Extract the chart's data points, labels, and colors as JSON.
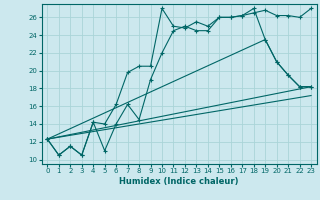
{
  "xlabel": "Humidex (Indice chaleur)",
  "bg_color": "#cce8ee",
  "line_color": "#006666",
  "grid_color": "#aad4d8",
  "xlim": [
    -0.5,
    23.5
  ],
  "ylim": [
    9.5,
    27.5
  ],
  "xticks": [
    0,
    1,
    2,
    3,
    4,
    5,
    6,
    7,
    8,
    9,
    10,
    11,
    12,
    13,
    14,
    15,
    16,
    17,
    18,
    19,
    20,
    21,
    22,
    23
  ],
  "yticks": [
    10,
    12,
    14,
    16,
    18,
    20,
    22,
    24,
    26
  ],
  "series1_x": [
    0,
    1,
    2,
    3,
    4,
    5,
    6,
    7,
    8,
    9,
    10,
    11,
    12,
    13,
    14,
    15,
    16,
    17,
    18,
    19,
    20,
    21,
    22,
    23
  ],
  "series1_y": [
    12.3,
    10.5,
    11.5,
    10.5,
    14.2,
    11.0,
    14.0,
    16.2,
    14.5,
    19.0,
    22.0,
    24.5,
    25.0,
    24.5,
    24.5,
    26.0,
    26.0,
    26.2,
    27.0,
    23.5,
    21.0,
    19.5,
    18.2,
    18.2
  ],
  "series2_x": [
    0,
    1,
    2,
    3,
    4,
    5,
    6,
    7,
    8,
    9,
    10,
    11,
    12,
    13,
    14,
    15,
    16,
    17,
    18,
    19,
    20,
    21,
    22,
    23
  ],
  "series2_y": [
    12.3,
    10.5,
    11.5,
    10.5,
    14.2,
    14.0,
    16.2,
    19.8,
    20.5,
    20.5,
    27.0,
    25.0,
    24.8,
    25.5,
    25.0,
    26.0,
    26.0,
    26.2,
    26.5,
    26.8,
    26.2,
    26.2,
    26.0,
    27.0
  ],
  "series3_x": [
    0,
    19,
    20,
    21,
    22,
    23
  ],
  "series3_y": [
    12.3,
    23.5,
    21.0,
    19.5,
    18.2,
    18.2
  ],
  "series4_x": [
    0,
    23
  ],
  "series4_y": [
    12.3,
    18.2
  ],
  "series5_x": [
    0,
    23
  ],
  "series5_y": [
    12.3,
    17.2
  ]
}
